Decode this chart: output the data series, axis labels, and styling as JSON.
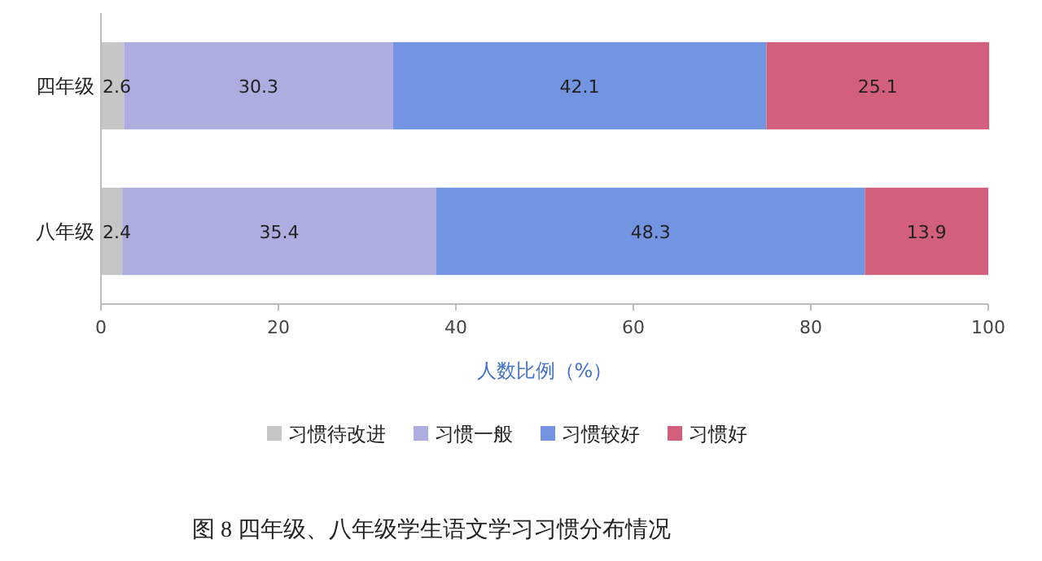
{
  "chart_data": {
    "type": "bar",
    "orientation": "horizontal",
    "stacked": true,
    "categories": [
      "四年级",
      "八年级"
    ],
    "series": [
      {
        "name": "习惯待改进",
        "color": "#c6c6c6",
        "values": [
          2.6,
          2.4
        ]
      },
      {
        "name": "习惯一般",
        "color": "#adade0",
        "values": [
          30.3,
          35.4
        ]
      },
      {
        "name": "习惯较好",
        "color": "#7394e0",
        "values": [
          42.1,
          48.3
        ]
      },
      {
        "name": "习惯好",
        "color": "#d2607c",
        "values": [
          25.1,
          13.9
        ]
      }
    ],
    "xlim": [
      0,
      100
    ],
    "xticks": [
      0,
      20,
      40,
      60,
      80,
      100
    ],
    "xlabel": "人数比例（%）",
    "data_labels": true,
    "legend": "bottom",
    "grid": false,
    "annotations": [
      "图 8   四年级、八年级学生语文学习习惯分布情况"
    ]
  }
}
